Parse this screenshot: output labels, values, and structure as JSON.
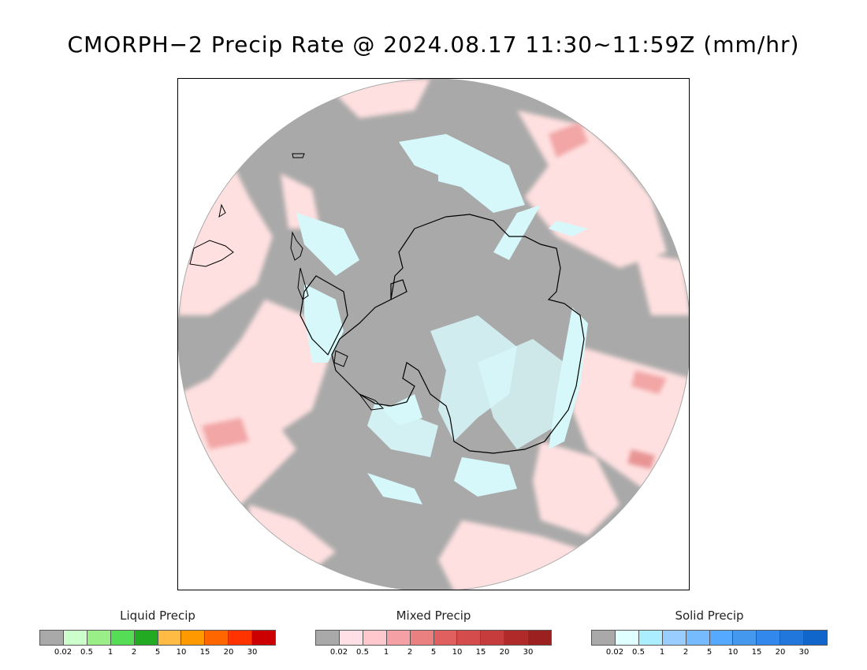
{
  "title": "CMORPH−2 Precip Rate @ 2024.08.17 11:30∼11:59Z (mm/hr)",
  "map": {
    "projection": "south-polar-stereographic",
    "colors": {
      "background": "#a9a9a9",
      "mixed_light": "#ffe0e0",
      "mixed_medium": "#f8b4b4",
      "mixed_strong": "#e07070",
      "solid_light": "#d7f8fa",
      "coastline": "#000000"
    }
  },
  "legends": [
    {
      "title": "Liquid Precip",
      "colors": [
        "#a9a9a9",
        "#ccffcc",
        "#99ee88",
        "#55dd55",
        "#22aa22",
        "#ffbb44",
        "#ff9900",
        "#ff6600",
        "#ff3300",
        "#cc0000"
      ],
      "ticks": [
        "0.02",
        "0.5",
        "1",
        "2",
        "5",
        "10",
        "15",
        "20",
        "30"
      ]
    },
    {
      "title": "Mixed Precip",
      "colors": [
        "#a9a9a9",
        "#ffe0e6",
        "#ffc8cc",
        "#f4a0a4",
        "#ea8080",
        "#e06060",
        "#d44c4c",
        "#c63c3c",
        "#b02a2a",
        "#9c2020"
      ],
      "ticks": [
        "0.02",
        "0.5",
        "1",
        "2",
        "5",
        "10",
        "15",
        "20",
        "30"
      ]
    },
    {
      "title": "Solid Precip",
      "colors": [
        "#a9a9a9",
        "#e0ffff",
        "#aaeeff",
        "#99ccff",
        "#77bbff",
        "#55aaff",
        "#4499ee",
        "#3388ee",
        "#2277dd",
        "#1166cc"
      ],
      "ticks": [
        "0.02",
        "0.5",
        "1",
        "2",
        "5",
        "10",
        "15",
        "20",
        "30"
      ]
    }
  ]
}
